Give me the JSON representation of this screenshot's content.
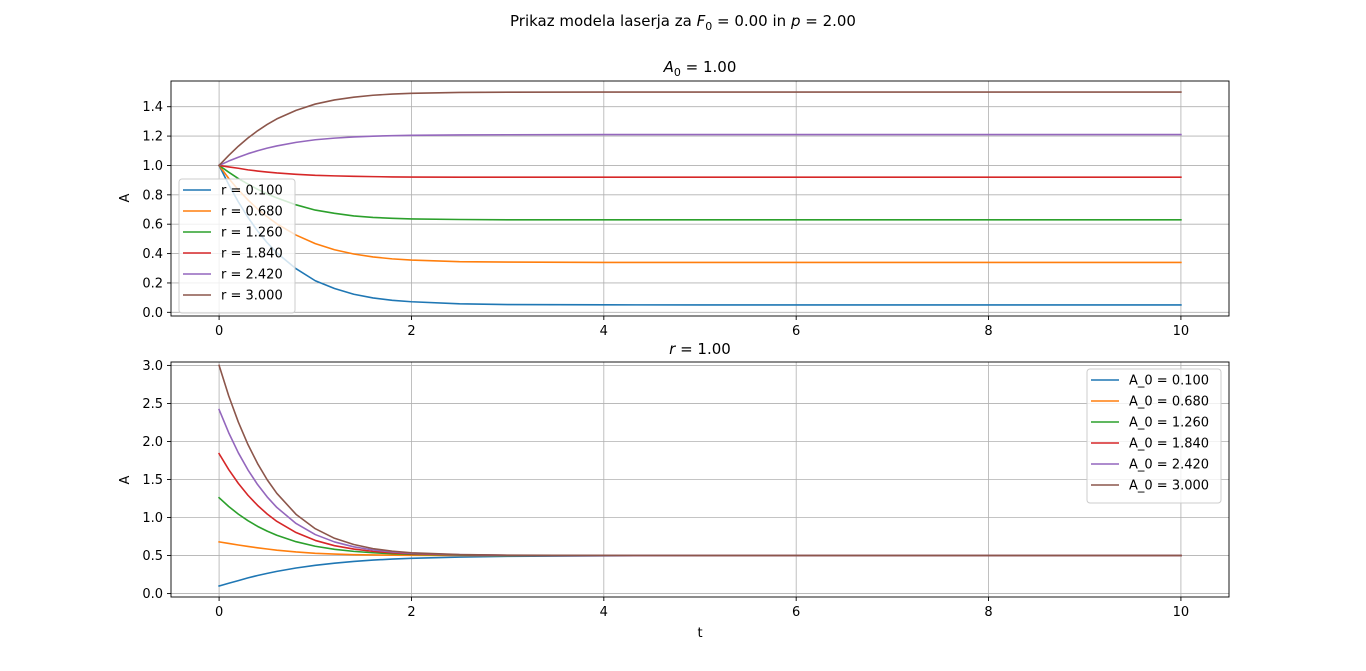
{
  "figure_title": "Prikaz modela laserja za F_0 = 0.00 in p = 2.00",
  "title_parts": {
    "prefix": "Prikaz modela laserja za ",
    "f_sym": "F",
    "f_sub": "0",
    "f_val": " = 0.00 in ",
    "p_sym": "p",
    "p_val": " = 2.00"
  },
  "colors": [
    "#1f77b4",
    "#ff7f0e",
    "#2ca02c",
    "#d62728",
    "#9467bd",
    "#8c564b"
  ],
  "chart_data": [
    {
      "type": "line",
      "title": "A_0 = 1.00",
      "title_parts": {
        "sym": "A",
        "sub": "0",
        "val": " = 1.00"
      },
      "xlabel": "",
      "ylabel": "A",
      "xlim": [
        -0.5,
        10.5
      ],
      "ylim": [
        -0.025,
        1.575
      ],
      "xticks": [
        0,
        2,
        4,
        6,
        8,
        10
      ],
      "yticks": [
        0.0,
        0.2,
        0.4,
        0.6,
        0.8,
        1.0,
        1.2,
        1.4
      ],
      "ytick_labels": [
        "0.0",
        "0.2",
        "0.4",
        "0.6",
        "0.8",
        "1.0",
        "1.2",
        "1.4"
      ],
      "grid": true,
      "legend_position": "center-left",
      "x": [
        0,
        0.1,
        0.2,
        0.3,
        0.4,
        0.5,
        0.6,
        0.8,
        1.0,
        1.2,
        1.4,
        1.6,
        1.8,
        2.0,
        2.5,
        3.0,
        4.0,
        5.0,
        6.0,
        7.0,
        8.0,
        9.0,
        10.0
      ],
      "series": [
        {
          "name": "r = 0.100",
          "values": [
            1.0,
            0.87,
            0.752,
            0.647,
            0.554,
            0.474,
            0.405,
            0.297,
            0.215,
            0.162,
            0.123,
            0.098,
            0.082,
            0.072,
            0.058,
            0.053,
            0.051,
            0.05,
            0.05,
            0.05,
            0.05,
            0.05,
            0.05
          ]
        },
        {
          "name": "r = 0.680",
          "values": [
            1.0,
            0.912,
            0.834,
            0.765,
            0.704,
            0.651,
            0.603,
            0.526,
            0.468,
            0.426,
            0.397,
            0.377,
            0.364,
            0.356,
            0.345,
            0.342,
            0.34,
            0.34,
            0.34,
            0.34,
            0.34,
            0.34,
            0.34
          ]
        },
        {
          "name": "r = 1.260",
          "values": [
            1.0,
            0.954,
            0.911,
            0.873,
            0.838,
            0.806,
            0.779,
            0.732,
            0.696,
            0.674,
            0.656,
            0.646,
            0.64,
            0.636,
            0.632,
            0.63,
            0.63,
            0.63,
            0.63,
            0.63,
            0.63,
            0.63,
            0.63
          ]
        },
        {
          "name": "r = 1.840",
          "values": [
            1.0,
            0.99,
            0.981,
            0.97,
            0.962,
            0.955,
            0.949,
            0.94,
            0.933,
            0.929,
            0.926,
            0.924,
            0.922,
            0.921,
            0.92,
            0.92,
            0.92,
            0.92,
            0.92,
            0.92,
            0.92,
            0.92,
            0.92
          ]
        },
        {
          "name": "r = 2.420",
          "values": [
            1.0,
            1.03,
            1.056,
            1.08,
            1.1,
            1.118,
            1.133,
            1.157,
            1.175,
            1.186,
            1.194,
            1.199,
            1.203,
            1.205,
            1.208,
            1.209,
            1.21,
            1.21,
            1.21,
            1.21,
            1.21,
            1.21,
            1.21
          ]
        },
        {
          "name": "r = 3.000",
          "values": [
            1.0,
            1.068,
            1.131,
            1.187,
            1.236,
            1.279,
            1.317,
            1.375,
            1.418,
            1.446,
            1.465,
            1.478,
            1.486,
            1.491,
            1.497,
            1.499,
            1.5,
            1.5,
            1.5,
            1.5,
            1.5,
            1.5,
            1.5
          ]
        }
      ]
    },
    {
      "type": "line",
      "title": "r = 1.00",
      "title_parts": {
        "sym": "r",
        "val": " = 1.00"
      },
      "xlabel": "t",
      "ylabel": "A",
      "xlim": [
        -0.5,
        10.5
      ],
      "ylim": [
        -0.045,
        3.045
      ],
      "xticks": [
        0,
        2,
        4,
        6,
        8,
        10
      ],
      "yticks": [
        0.0,
        0.5,
        1.0,
        1.5,
        2.0,
        2.5,
        3.0
      ],
      "ytick_labels": [
        "0.0",
        "0.5",
        "1.0",
        "1.5",
        "2.0",
        "2.5",
        "3.0"
      ],
      "grid": true,
      "legend_position": "top-right",
      "x": [
        0,
        0.1,
        0.2,
        0.3,
        0.4,
        0.5,
        0.6,
        0.8,
        1.0,
        1.2,
        1.4,
        1.6,
        1.8,
        2.0,
        2.5,
        3.0,
        4.0,
        5.0,
        6.0,
        7.0,
        8.0,
        9.0,
        10.0
      ],
      "series": [
        {
          "name": "A_0 = 0.100",
          "values": [
            0.1,
            0.136,
            0.17,
            0.206,
            0.238,
            0.266,
            0.292,
            0.336,
            0.372,
            0.4,
            0.423,
            0.44,
            0.454,
            0.464,
            0.48,
            0.49,
            0.497,
            0.499,
            0.5,
            0.5,
            0.5,
            0.5,
            0.5
          ]
        },
        {
          "name": "A_0 = 0.680",
          "values": [
            0.68,
            0.659,
            0.639,
            0.62,
            0.602,
            0.586,
            0.571,
            0.547,
            0.53,
            0.519,
            0.512,
            0.508,
            0.505,
            0.503,
            0.501,
            0.5,
            0.5,
            0.5,
            0.5,
            0.5,
            0.5,
            0.5,
            0.5
          ]
        },
        {
          "name": "A_0 = 1.260",
          "values": [
            1.26,
            1.145,
            1.045,
            0.958,
            0.884,
            0.821,
            0.767,
            0.682,
            0.622,
            0.582,
            0.555,
            0.537,
            0.524,
            0.516,
            0.506,
            0.502,
            0.5,
            0.5,
            0.5,
            0.5,
            0.5,
            0.5,
            0.5
          ]
        },
        {
          "name": "A_0 = 1.840",
          "values": [
            1.84,
            1.631,
            1.449,
            1.293,
            1.16,
            1.046,
            0.95,
            0.803,
            0.699,
            0.63,
            0.585,
            0.555,
            0.536,
            0.523,
            0.509,
            0.503,
            0.5,
            0.5,
            0.5,
            0.5,
            0.5,
            0.5,
            0.5
          ]
        },
        {
          "name": "A_0 = 2.420",
          "values": [
            2.42,
            2.115,
            1.851,
            1.626,
            1.434,
            1.271,
            1.133,
            0.922,
            0.776,
            0.679,
            0.615,
            0.573,
            0.547,
            0.53,
            0.511,
            0.504,
            0.5,
            0.5,
            0.5,
            0.5,
            0.5,
            0.5,
            0.5
          ]
        },
        {
          "name": "A_0 = 3.000",
          "values": [
            3.0,
            2.6,
            2.255,
            1.96,
            1.71,
            1.497,
            1.318,
            1.042,
            0.853,
            0.727,
            0.645,
            0.591,
            0.558,
            0.536,
            0.513,
            0.505,
            0.501,
            0.5,
            0.5,
            0.5,
            0.5,
            0.5,
            0.5
          ]
        }
      ]
    }
  ]
}
